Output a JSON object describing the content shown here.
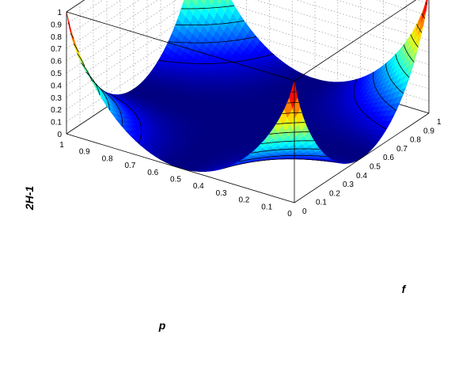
{
  "chart_data": {
    "type": "surface3d",
    "title": "",
    "xlabel": "p",
    "ylabel": "f",
    "zlabel": "2H-1",
    "x_axis": {
      "label": "p",
      "range": [
        0,
        1
      ],
      "ticks": [
        "0",
        "0.1",
        "0.2",
        "0.3",
        "0.4",
        "0.5",
        "0.6",
        "0.7",
        "0.8",
        "0.9",
        "1"
      ]
    },
    "y_axis": {
      "label": "f",
      "range": [
        0,
        1
      ],
      "ticks": [
        "0",
        "0.1",
        "0.2",
        "0.3",
        "0.4",
        "0.5",
        "0.6",
        "0.7",
        "0.8",
        "0.9",
        "1"
      ]
    },
    "z_axis": {
      "label": "2H-1",
      "range": [
        0,
        1
      ],
      "ticks": [
        "0",
        "0.1",
        "0.2",
        "0.3",
        "0.4",
        "0.5",
        "0.6",
        "0.7",
        "0.8",
        "0.9",
        "1"
      ]
    },
    "grid": true,
    "colormap": "jet",
    "contour_levels": [
      0.1,
      0.2,
      0.3,
      0.4,
      0.5,
      0.6,
      0.7,
      0.8,
      0.9
    ],
    "surface_sample_f": [
      0,
      0.1,
      0.2,
      0.3,
      0.4,
      0.5,
      0.6,
      0.7,
      0.8,
      0.9,
      1
    ],
    "surface_sample_z_at_p1": [
      1.0,
      0.89,
      0.78,
      0.66,
      0.55,
      0.44,
      0.33,
      0.22,
      0.11,
      0.02,
      0.0
    ],
    "surface_sample_z_at_p0": [
      0.0,
      0.02,
      0.11,
      0.22,
      0.33,
      0.44,
      0.55,
      0.66,
      0.78,
      0.89,
      1.0
    ]
  }
}
